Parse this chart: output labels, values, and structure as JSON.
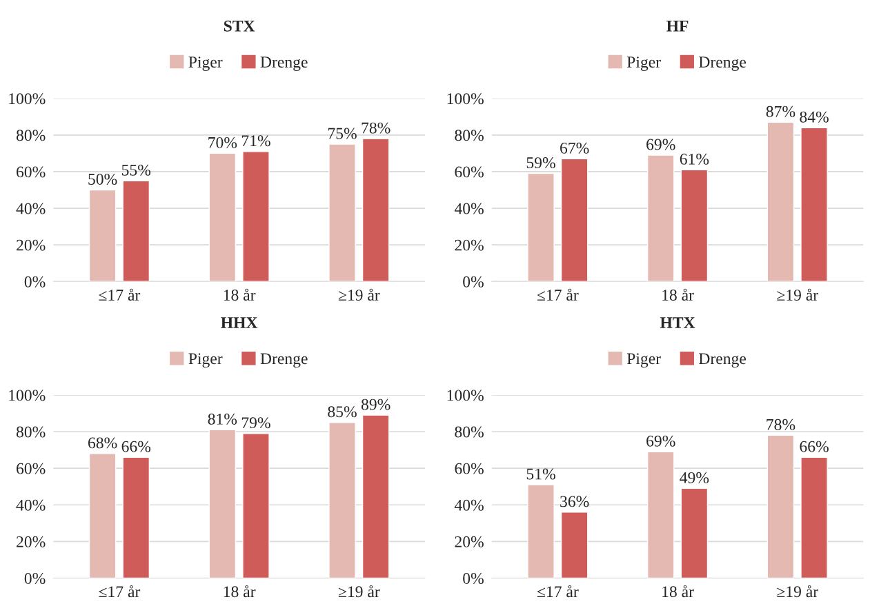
{
  "chart_data": [
    {
      "type": "bar",
      "title": "STX",
      "categories": [
        "≤17 år",
        "18 år",
        "≥19 år"
      ],
      "series": [
        {
          "name": "Piger",
          "color": "#e3b9b2",
          "values": [
            50,
            70,
            75
          ],
          "value_labels": [
            "50%",
            "70%",
            "75%"
          ]
        },
        {
          "name": "Drenge",
          "color": "#d05c5a",
          "values": [
            55,
            71,
            78
          ],
          "value_labels": [
            "55%",
            "71%",
            "78%"
          ]
        }
      ],
      "ylim": [
        0,
        100
      ],
      "yticks": [
        {
          "value": 0,
          "label": "0%"
        },
        {
          "value": 20,
          "label": "20%"
        },
        {
          "value": 40,
          "label": "40%"
        },
        {
          "value": 60,
          "label": "60%"
        },
        {
          "value": 80,
          "label": "80%"
        },
        {
          "value": 100,
          "label": "100%"
        }
      ],
      "grid": "y",
      "legend": "top"
    },
    {
      "type": "bar",
      "title": "HF",
      "categories": [
        "≤17 år",
        "18 år",
        "≥19 år"
      ],
      "series": [
        {
          "name": "Piger",
          "color": "#e3b9b2",
          "values": [
            59,
            69,
            87
          ],
          "value_labels": [
            "59%",
            "69%",
            "87%"
          ]
        },
        {
          "name": "Drenge",
          "color": "#d05c5a",
          "values": [
            67,
            61,
            84
          ],
          "value_labels": [
            "67%",
            "61%",
            "84%"
          ]
        }
      ],
      "ylim": [
        0,
        100
      ],
      "yticks": [
        {
          "value": 0,
          "label": "0%"
        },
        {
          "value": 20,
          "label": "20%"
        },
        {
          "value": 40,
          "label": "40%"
        },
        {
          "value": 60,
          "label": "60%"
        },
        {
          "value": 80,
          "label": "80%"
        },
        {
          "value": 100,
          "label": "100%"
        }
      ],
      "grid": "y",
      "legend": "top"
    },
    {
      "type": "bar",
      "title": "HHX",
      "categories": [
        "≤17 år",
        "18 år",
        "≥19 år"
      ],
      "series": [
        {
          "name": "Piger",
          "color": "#e3b9b2",
          "values": [
            68,
            81,
            85
          ],
          "value_labels": [
            "68%",
            "81%",
            "85%"
          ]
        },
        {
          "name": "Drenge",
          "color": "#d05c5a",
          "values": [
            66,
            79,
            89
          ],
          "value_labels": [
            "66%",
            "79%",
            "89%"
          ]
        }
      ],
      "ylim": [
        0,
        100
      ],
      "yticks": [
        {
          "value": 0,
          "label": "0%"
        },
        {
          "value": 20,
          "label": "20%"
        },
        {
          "value": 40,
          "label": "40%"
        },
        {
          "value": 60,
          "label": "60%"
        },
        {
          "value": 80,
          "label": "80%"
        },
        {
          "value": 100,
          "label": "100%"
        }
      ],
      "grid": "y",
      "legend": "top"
    },
    {
      "type": "bar",
      "title": "HTX",
      "categories": [
        "≤17 år",
        "18 år",
        "≥19 år"
      ],
      "series": [
        {
          "name": "Piger",
          "color": "#e3b9b2",
          "values": [
            51,
            69,
            78
          ],
          "value_labels": [
            "51%",
            "69%",
            "78%"
          ]
        },
        {
          "name": "Drenge",
          "color": "#d05c5a",
          "values": [
            36,
            49,
            66
          ],
          "value_labels": [
            "36%",
            "49%",
            "66%"
          ]
        }
      ],
      "ylim": [
        0,
        100
      ],
      "yticks": [
        {
          "value": 0,
          "label": "0%"
        },
        {
          "value": 20,
          "label": "20%"
        },
        {
          "value": 40,
          "label": "40%"
        },
        {
          "value": 60,
          "label": "60%"
        },
        {
          "value": 80,
          "label": "80%"
        },
        {
          "value": 100,
          "label": "100%"
        }
      ],
      "grid": "y",
      "legend": "top"
    }
  ]
}
